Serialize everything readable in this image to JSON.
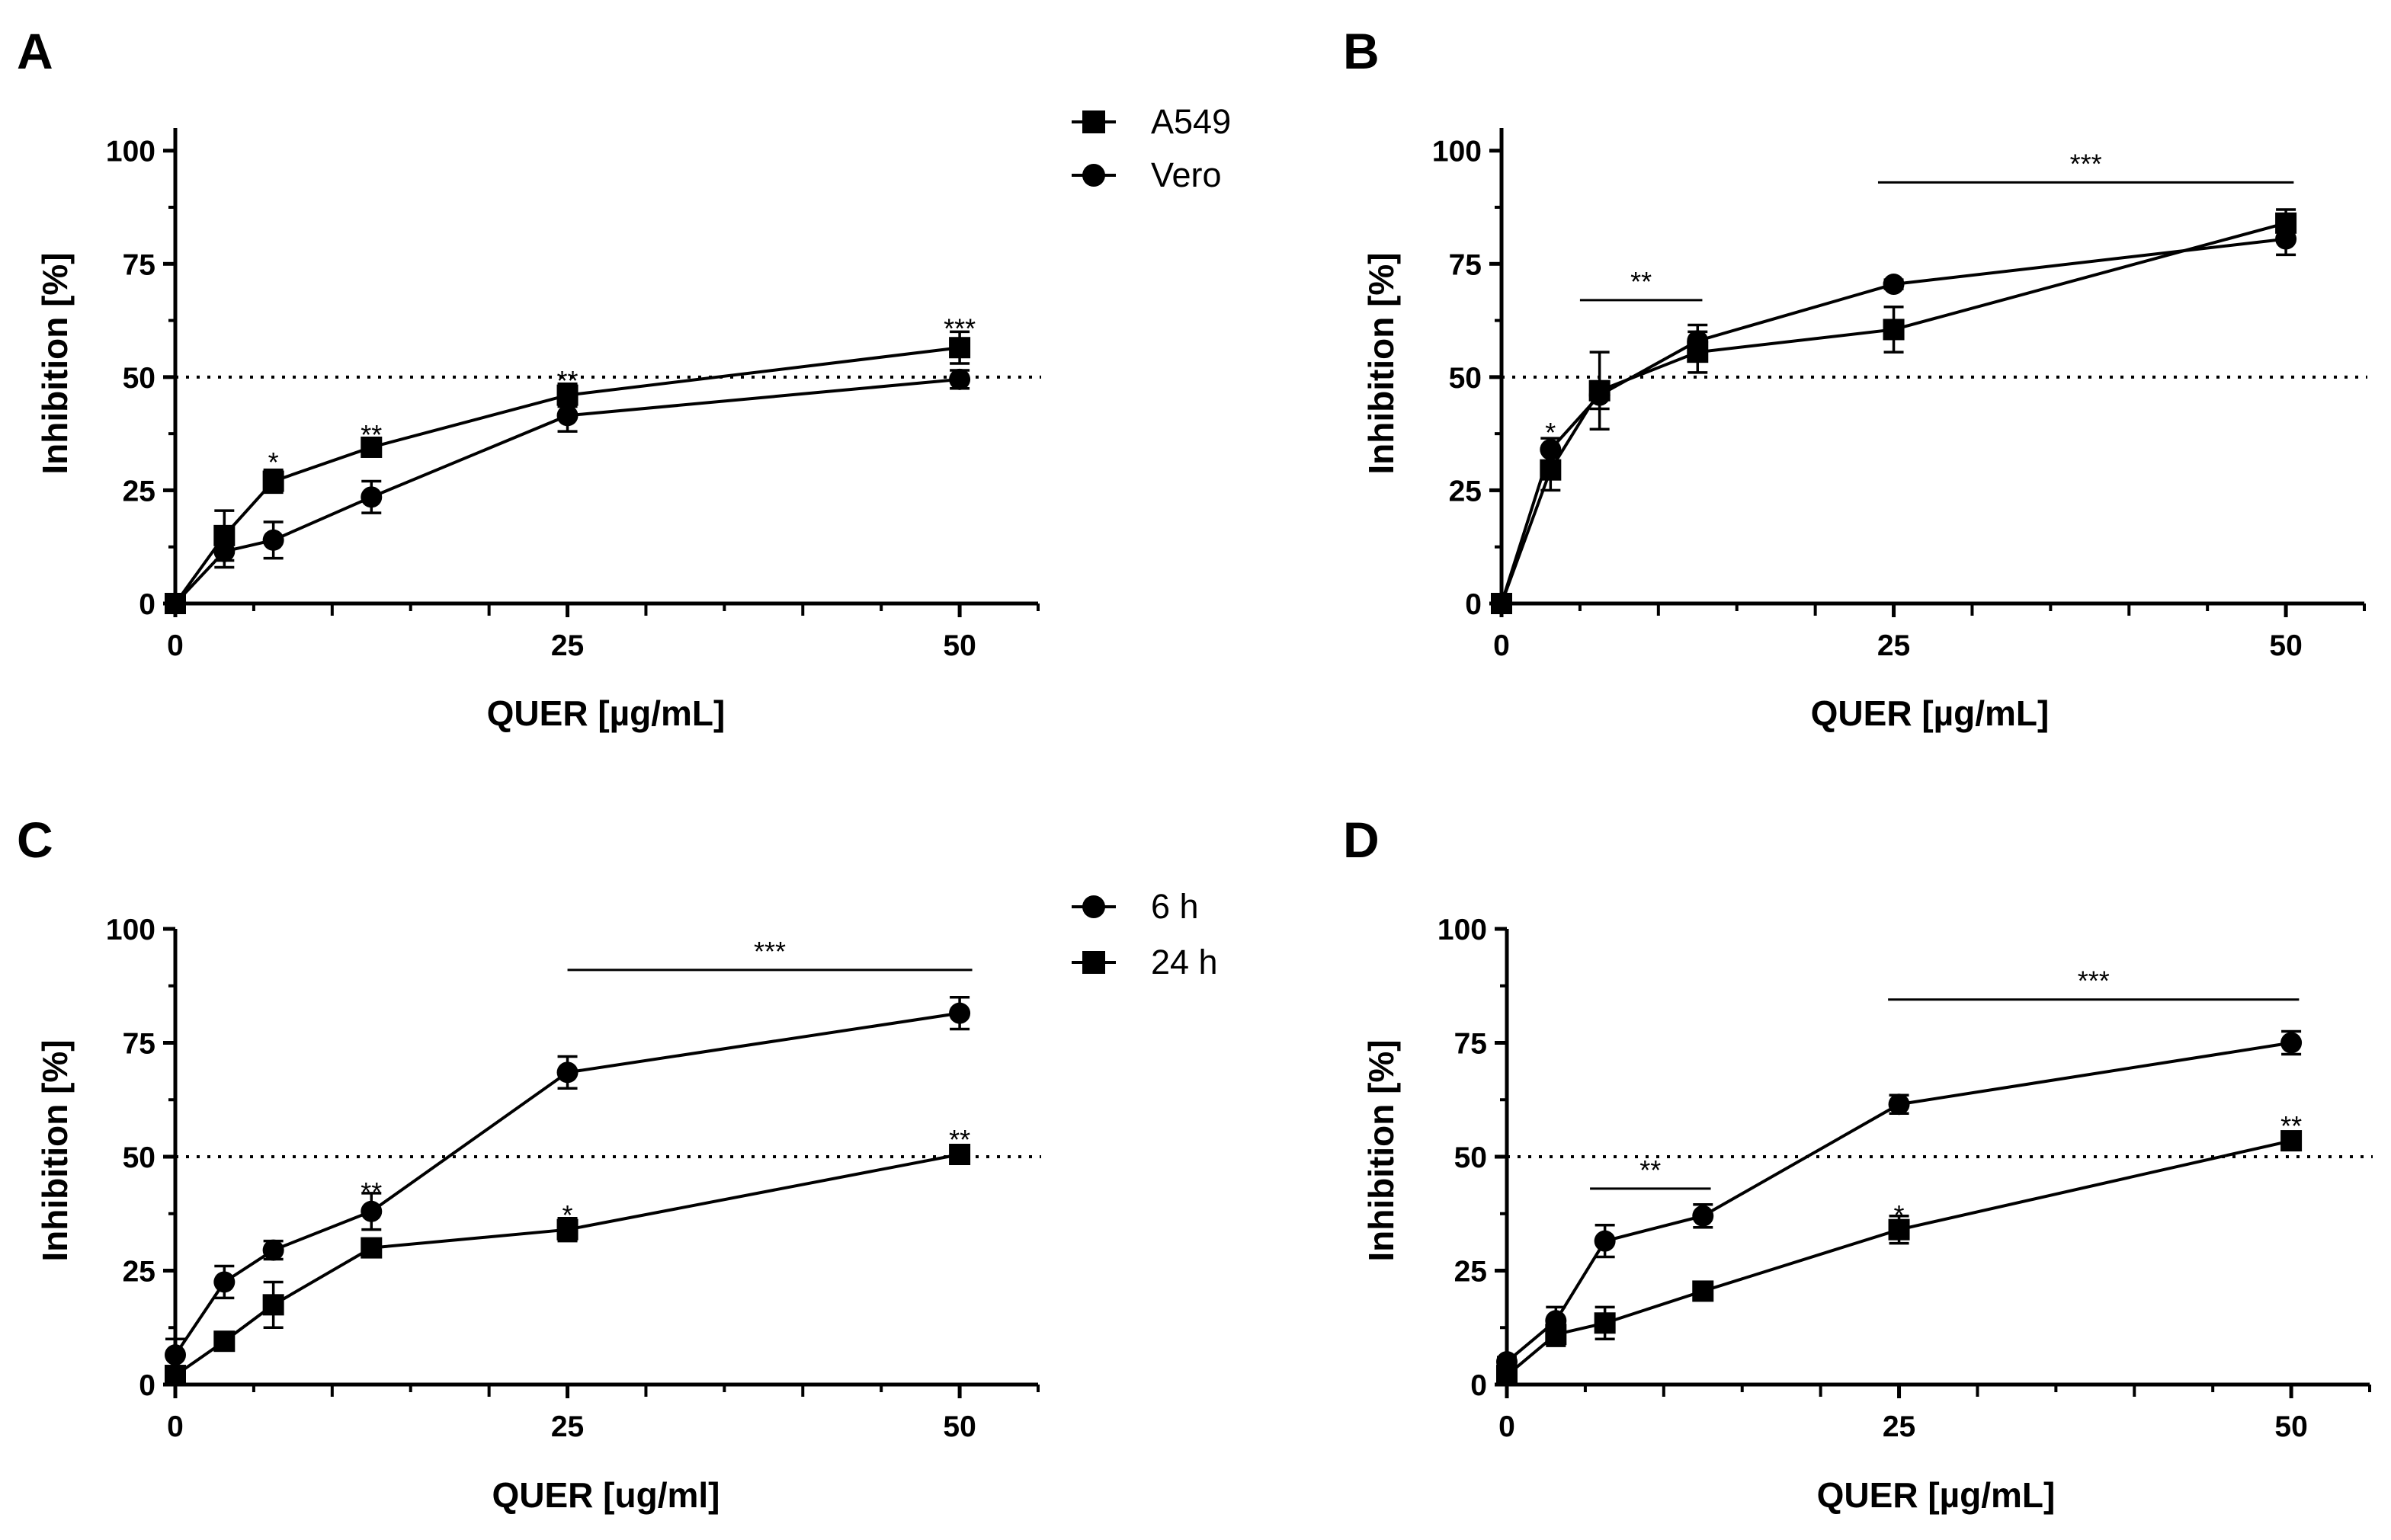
{
  "colors": {
    "ink": "#000000",
    "background": "#ffffff"
  },
  "chart_data": [
    {
      "panel": "A",
      "type": "line",
      "xlabel": "QUER [µg/mL]",
      "ylabel": "Inhibition [%]",
      "xlim": [
        0,
        55
      ],
      "ylim": [
        0,
        105
      ],
      "xticks": [
        0,
        25,
        50
      ],
      "yticks": [
        0,
        25,
        50,
        75,
        100
      ],
      "reference_line_y": 50,
      "x": [
        0,
        3.125,
        6.25,
        12.5,
        25,
        50
      ],
      "legend": {
        "placement": "top-right",
        "entries": [
          "A549",
          "Vero"
        ]
      },
      "series": [
        {
          "name": "A549",
          "marker": "square",
          "values": [
            0,
            15,
            27,
            34.5,
            46,
            56.5
          ],
          "errors": [
            0,
            5.5,
            2.5,
            1.2,
            2.5,
            3.5
          ]
        },
        {
          "name": "Vero",
          "marker": "circle",
          "values": [
            0,
            11.5,
            14,
            23.5,
            41.5,
            49.5
          ],
          "errors": [
            0,
            3.5,
            4,
            3.5,
            3.5,
            2
          ]
        }
      ],
      "annotations": [
        {
          "text": "*",
          "x": 6.25,
          "y": 31.5
        },
        {
          "text": "**",
          "x": 12.5,
          "y": 37.5
        },
        {
          "text": "**",
          "x": 25,
          "y": 49.5
        },
        {
          "text": "***",
          "x": 50,
          "y": 61
        }
      ],
      "brackets": []
    },
    {
      "panel": "B",
      "type": "line",
      "xlabel": "QUER [µg/mL]",
      "ylabel": "Inhibition [%]",
      "xlim": [
        0,
        55
      ],
      "ylim": [
        0,
        105
      ],
      "xticks": [
        0,
        25,
        50
      ],
      "yticks": [
        0,
        25,
        50,
        75,
        100
      ],
      "reference_line_y": 50,
      "x": [
        0,
        3.125,
        6.25,
        12.5,
        25,
        50
      ],
      "series": [
        {
          "name": "A549",
          "marker": "square",
          "values": [
            0,
            29.5,
            47,
            55.5,
            60.5,
            84
          ],
          "errors": [
            0,
            4.5,
            8.5,
            4.5,
            5,
            3
          ]
        },
        {
          "name": "Vero",
          "marker": "circle",
          "values": [
            0,
            34,
            46,
            58,
            70.5,
            80.5
          ],
          "errors": [
            0,
            2.5,
            3,
            3.5,
            1,
            3.5
          ]
        }
      ],
      "annotations": [
        {
          "text": "*",
          "x": 3.125,
          "y": 38
        }
      ],
      "brackets": [
        {
          "text": "**",
          "x1": 5,
          "x2": 12.8,
          "y": 67
        },
        {
          "text": "***",
          "x1": 24,
          "x2": 50.5,
          "y": 93
        }
      ]
    },
    {
      "panel": "C",
      "type": "line",
      "xlabel": "QUER [ug/ml]",
      "ylabel": "Inhibition [%]",
      "xlim": [
        0,
        55
      ],
      "ylim": [
        0,
        100
      ],
      "xticks": [
        0,
        25,
        50
      ],
      "yticks": [
        0,
        25,
        50,
        75,
        100
      ],
      "reference_line_y": 50,
      "x": [
        0,
        3.125,
        6.25,
        12.5,
        25,
        50
      ],
      "legend": {
        "placement": "top-right",
        "entries": [
          "6 h",
          "24 h"
        ]
      },
      "series": [
        {
          "name": "6 h",
          "marker": "circle",
          "values": [
            6.5,
            22.5,
            29.5,
            38,
            68.5,
            81.5
          ],
          "errors": [
            3.5,
            3.5,
            2,
            4,
            3.5,
            3.5
          ]
        },
        {
          "name": "24 h",
          "marker": "square",
          "values": [
            2,
            9.5,
            17.5,
            30,
            34,
            50.5
          ],
          "errors": [
            0.5,
            1,
            5,
            1,
            2.5,
            1
          ]
        }
      ],
      "annotations": [
        {
          "text": "**",
          "x": 12.5,
          "y": 42.5
        },
        {
          "text": "*",
          "x": 25,
          "y": 37.5
        },
        {
          "text": "**",
          "x": 50,
          "y": 54
        }
      ],
      "brackets": [
        {
          "text": "***",
          "x1": 25,
          "x2": 50.8,
          "y": 91
        }
      ]
    },
    {
      "panel": "D",
      "type": "line",
      "xlabel": "QUER [µg/mL]",
      "ylabel": "Inhibition [%]",
      "xlim": [
        0,
        55
      ],
      "ylim": [
        0,
        100
      ],
      "xticks": [
        0,
        25,
        50
      ],
      "yticks": [
        0,
        25,
        50,
        75,
        100
      ],
      "reference_line_y": 50,
      "x": [
        0,
        3.125,
        6.25,
        12.5,
        25,
        50
      ],
      "series": [
        {
          "name": "6 h",
          "marker": "circle",
          "values": [
            5,
            14,
            31.5,
            37,
            61.5,
            75
          ],
          "errors": [
            1,
            3,
            3.5,
            2.5,
            2,
            2.5
          ]
        },
        {
          "name": "24 h",
          "marker": "square",
          "values": [
            2,
            11,
            13.5,
            20.5,
            34,
            53.5
          ],
          "errors": [
            1,
            2.5,
            3.5,
            1,
            3,
            1
          ]
        }
      ],
      "annotations": [
        {
          "text": "*",
          "x": 25,
          "y": 37.5
        },
        {
          "text": "**",
          "x": 50,
          "y": 57
        }
      ],
      "brackets": [
        {
          "text": "**",
          "x1": 5.3,
          "x2": 13,
          "y": 43
        },
        {
          "text": "***",
          "x1": 24.3,
          "x2": 50.5,
          "y": 84.5
        }
      ]
    }
  ]
}
